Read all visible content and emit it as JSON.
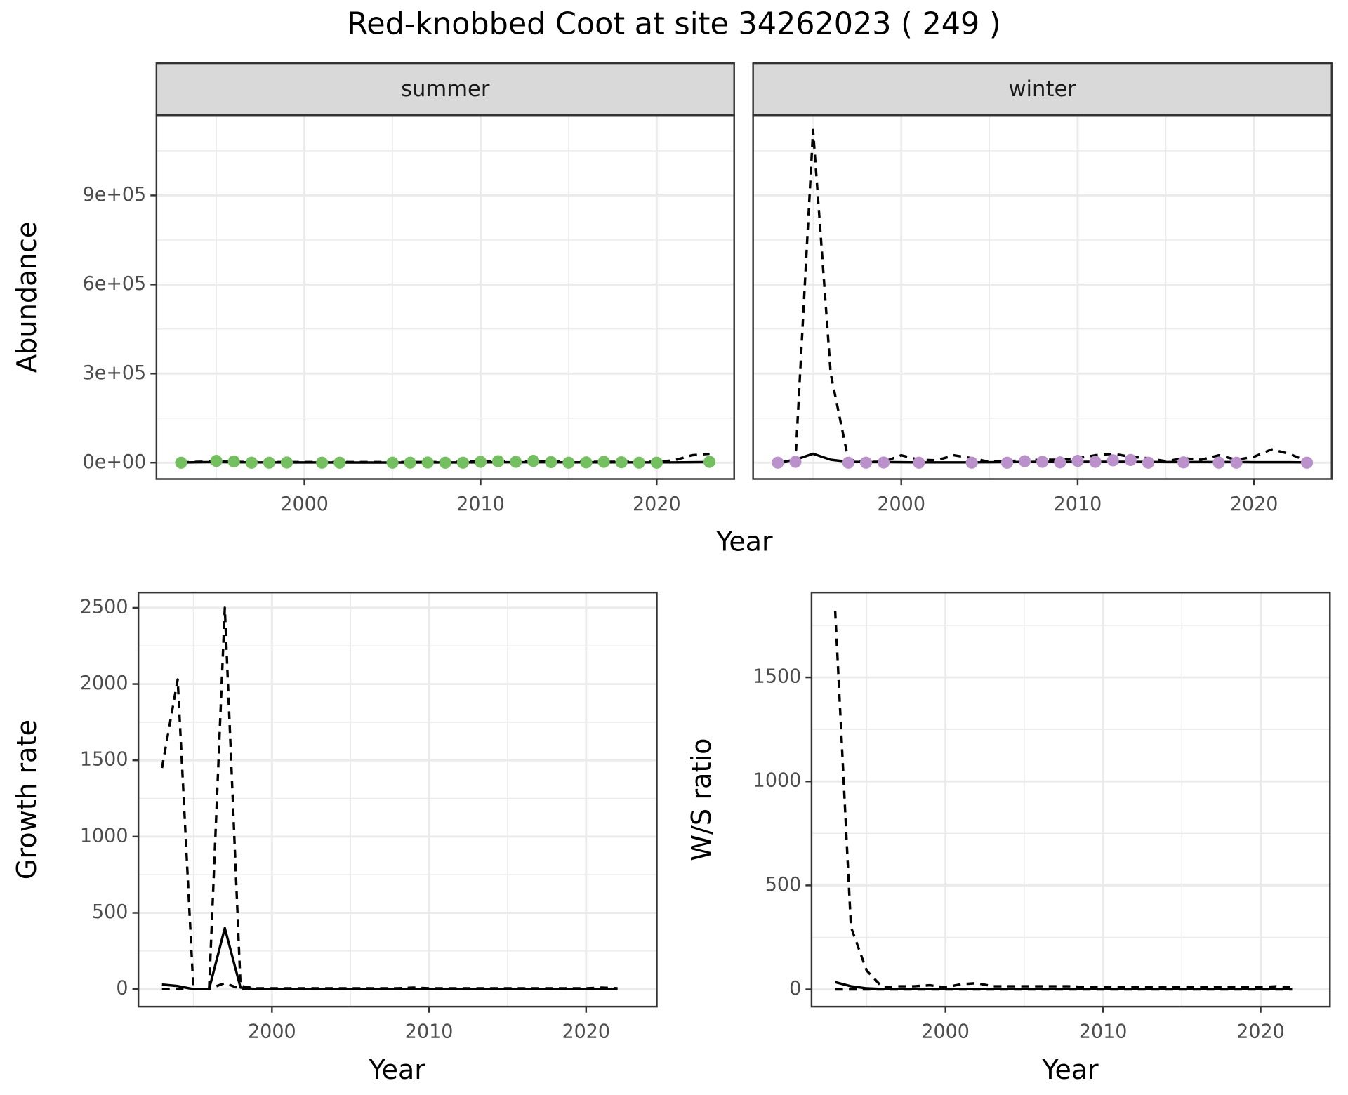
{
  "title": "Red-knobbed Coot at site 34262023 ( 249 )",
  "chart_data": [
    {
      "type": "line",
      "strip": "summer",
      "ylabel": "Abundance",
      "xlabel": "Year",
      "xlim": [
        1991.6,
        2024.4
      ],
      "xticks": [
        2000,
        2010,
        2020
      ],
      "ylim": [
        -55000,
        1170000
      ],
      "yticks": [
        {
          "value": 0,
          "label": "0e+00"
        },
        {
          "value": 300000,
          "label": "3e+05"
        },
        {
          "value": 600000,
          "label": "6e+05"
        },
        {
          "value": 900000,
          "label": "9e+05"
        }
      ],
      "grid": true,
      "x": [
        1993,
        1994,
        1995,
        1996,
        1997,
        1998,
        1999,
        2000,
        2001,
        2002,
        2003,
        2004,
        2005,
        2006,
        2007,
        2008,
        2009,
        2010,
        2011,
        2012,
        2013,
        2014,
        2015,
        2016,
        2017,
        2018,
        2019,
        2020,
        2021,
        2022,
        2023
      ],
      "series": [
        {
          "color": "#000000",
          "linestyle": "dashed",
          "values": [
            1000,
            3000,
            4000,
            3000,
            2000,
            2000,
            2000,
            2000,
            2000,
            2000,
            2000,
            2000,
            2000,
            2000,
            2000,
            2000,
            3000,
            4000,
            5000,
            5000,
            5000,
            4000,
            3000,
            3000,
            3000,
            3000,
            3000,
            3000,
            8000,
            25000,
            30000
          ]
        },
        {
          "color": "#000000",
          "linestyle": "solid",
          "values": [
            500,
            1500,
            2000,
            1500,
            1000,
            1000,
            800,
            800,
            800,
            600,
            500,
            500,
            500,
            600,
            700,
            800,
            900,
            1200,
            1500,
            1500,
            1500,
            1300,
            1200,
            1100,
            1100,
            1000,
            1000,
            1000,
            1000,
            1500,
            2000
          ]
        },
        {
          "color": "#74bf5f",
          "marker": "point",
          "x": [
            1993,
            1995,
            1996,
            1997,
            1998,
            1999,
            2001,
            2002,
            2005,
            2006,
            2007,
            2008,
            2009,
            2010,
            2011,
            2012,
            2013,
            2014,
            2015,
            2016,
            2017,
            2018,
            2019,
            2020,
            2023
          ],
          "values": [
            0,
            6000,
            4000,
            0,
            0,
            500,
            0,
            0,
            0,
            0,
            500,
            0,
            0,
            3000,
            5000,
            3000,
            6000,
            2000,
            0,
            1000,
            3000,
            1500,
            0,
            0,
            3000
          ]
        }
      ]
    },
    {
      "type": "line",
      "strip": "winter",
      "xlim": [
        1991.6,
        2024.4
      ],
      "xticks": [
        2000,
        2010,
        2020
      ],
      "grid": true,
      "x": [
        1993,
        1994,
        1995,
        1996,
        1997,
        1998,
        1999,
        2000,
        2001,
        2002,
        2003,
        2004,
        2005,
        2006,
        2007,
        2008,
        2009,
        2010,
        2011,
        2012,
        2013,
        2014,
        2015,
        2016,
        2017,
        2018,
        2019,
        2020,
        2021,
        2022,
        2023
      ],
      "series": [
        {
          "color": "#000000",
          "linestyle": "dashed",
          "values": [
            0,
            5000,
            1120000,
            300000,
            10000,
            3000,
            3000,
            25000,
            10000,
            8000,
            25000,
            15000,
            3000,
            5000,
            8000,
            10000,
            10000,
            15000,
            25000,
            30000,
            20000,
            15000,
            5000,
            15000,
            10000,
            25000,
            10000,
            20000,
            45000,
            30000,
            5000
          ]
        },
        {
          "color": "#000000",
          "linestyle": "solid",
          "values": [
            0,
            10000,
            30000,
            10000,
            3000,
            2000,
            2000,
            1500,
            1000,
            1000,
            1000,
            1000,
            1500,
            2000,
            2500,
            3000,
            3000,
            3000,
            3000,
            3000,
            3000,
            2500,
            2000,
            2000,
            2000,
            2000,
            2000,
            1500,
            1500,
            1500,
            1000
          ]
        },
        {
          "color": "#bb91cc",
          "marker": "point",
          "x": [
            1993,
            1994,
            1997,
            1998,
            1999,
            2001,
            2004,
            2006,
            2007,
            2008,
            2009,
            2010,
            2011,
            2012,
            2013,
            2014,
            2016,
            2018,
            2019,
            2023
          ],
          "values": [
            0,
            3000,
            0,
            0,
            500,
            0,
            0,
            0,
            5000,
            3000,
            1000,
            6000,
            3000,
            8000,
            9000,
            0,
            1000,
            0,
            0,
            0
          ]
        }
      ]
    },
    {
      "type": "line",
      "ylabel": "Growth rate",
      "xlabel": "Year",
      "xlim": [
        1991.5,
        2024.5
      ],
      "xticks": [
        2000,
        2010,
        2020
      ],
      "ylim": [
        -115,
        2600
      ],
      "yticks": [
        0,
        500,
        1000,
        1500,
        2000,
        2500
      ],
      "grid": true,
      "x": [
        1993,
        1994,
        1995,
        1996,
        1997,
        1998,
        1999,
        2000,
        2001,
        2002,
        2003,
        2004,
        2005,
        2006,
        2007,
        2008,
        2009,
        2010,
        2011,
        2012,
        2013,
        2014,
        2015,
        2016,
        2017,
        2018,
        2019,
        2020,
        2021,
        2022
      ],
      "series": [
        {
          "color": "#000000",
          "linestyle": "dashed",
          "values": [
            1450,
            2030,
            0,
            0,
            2500,
            20,
            5,
            5,
            5,
            5,
            5,
            5,
            5,
            5,
            5,
            5,
            10,
            5,
            5,
            5,
            5,
            5,
            5,
            5,
            5,
            5,
            5,
            5,
            10,
            5
          ]
        },
        {
          "color": "#000000",
          "linestyle": "dashed",
          "values": [
            0,
            0,
            0,
            0,
            40,
            0,
            0,
            0,
            0,
            0,
            0,
            0,
            0,
            0,
            0,
            0,
            0,
            0,
            0,
            0,
            0,
            0,
            0,
            0,
            0,
            0,
            0,
            0,
            0,
            0
          ]
        },
        {
          "color": "#000000",
          "linestyle": "solid",
          "values": [
            30,
            20,
            0,
            0,
            400,
            10,
            0,
            0,
            0,
            0,
            0,
            0,
            0,
            0,
            0,
            0,
            0,
            0,
            0,
            0,
            0,
            0,
            0,
            0,
            0,
            0,
            0,
            0,
            0,
            0
          ]
        }
      ]
    },
    {
      "type": "line",
      "ylabel": "W/S ratio",
      "xlabel": "Year",
      "xlim": [
        1991.5,
        2024.4
      ],
      "xticks": [
        2000,
        2010,
        2020
      ],
      "ylim": [
        -83,
        1908
      ],
      "yticks": [
        0,
        500,
        1000,
        1500
      ],
      "grid": true,
      "x": [
        1993,
        1994,
        1995,
        1996,
        1997,
        1998,
        1999,
        2000,
        2001,
        2002,
        2003,
        2004,
        2005,
        2006,
        2007,
        2008,
        2009,
        2010,
        2011,
        2012,
        2013,
        2014,
        2015,
        2016,
        2017,
        2018,
        2019,
        2020,
        2021,
        2022
      ],
      "series": [
        {
          "color": "#000000",
          "linestyle": "dashed",
          "values": [
            1820,
            300,
            90,
            10,
            15,
            15,
            20,
            10,
            25,
            30,
            15,
            15,
            15,
            15,
            15,
            15,
            10,
            10,
            10,
            10,
            10,
            10,
            10,
            10,
            10,
            10,
            10,
            10,
            15,
            10
          ]
        },
        {
          "color": "#000000",
          "linestyle": "dashed",
          "values": [
            0,
            0,
            0,
            0,
            0,
            0,
            0,
            0,
            0,
            0,
            0,
            0,
            0,
            0,
            0,
            0,
            0,
            0,
            0,
            0,
            0,
            0,
            0,
            0,
            0,
            0,
            0,
            0,
            0,
            0
          ]
        },
        {
          "color": "#000000",
          "linestyle": "solid",
          "values": [
            35,
            15,
            5,
            2,
            2,
            2,
            2,
            2,
            2,
            2,
            2,
            2,
            2,
            2,
            2,
            2,
            2,
            2,
            2,
            2,
            2,
            2,
            2,
            2,
            2,
            2,
            2,
            2,
            2,
            2
          ]
        }
      ]
    }
  ]
}
